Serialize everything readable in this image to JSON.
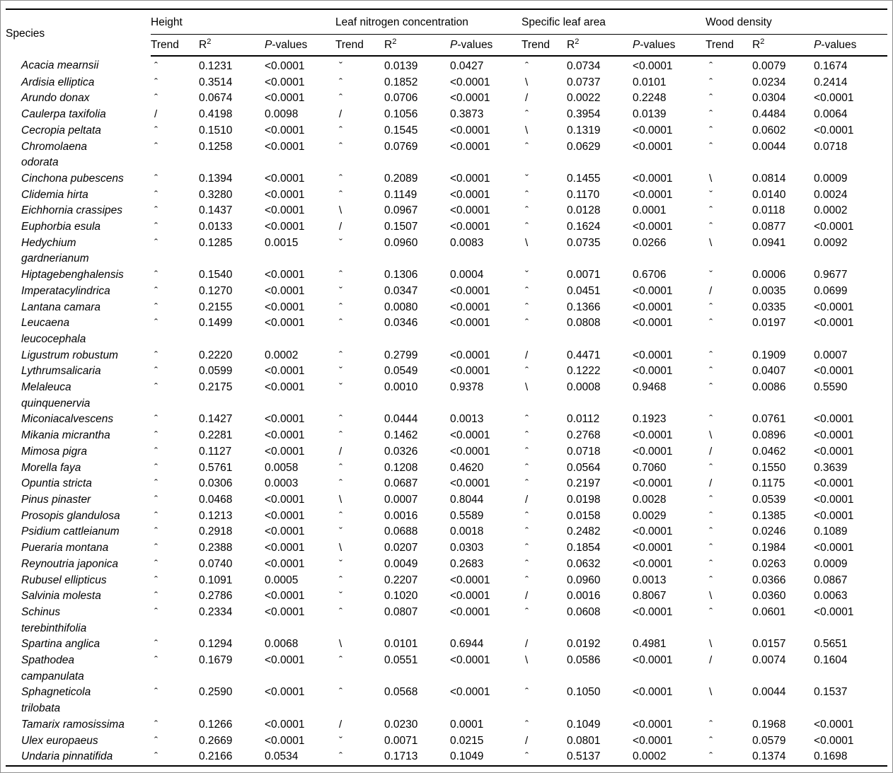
{
  "table": {
    "col_species": "Species",
    "groups": [
      "Height",
      "Leaf nitrogen concentration",
      "Specific leaf area",
      "Wood density"
    ],
    "subheaders": {
      "trend": "Trend",
      "r2_base": "R",
      "r2_sup": "2",
      "p_italic": "P",
      "p_rest": "-values"
    },
    "trend_glyphs": {
      "hump": "ˆ",
      "u_shape": "ˇ",
      "increase": "/",
      "decrease": "\\"
    },
    "rows": [
      {
        "species": "Acacia mearnsii",
        "cells": [
          [
            "ˆ",
            "0.1231",
            "<0.0001"
          ],
          [
            "ˇ",
            "0.0139",
            "0.0427"
          ],
          [
            "ˆ",
            "0.0734",
            "<0.0001"
          ],
          [
            "ˆ",
            "0.0079",
            "0.1674"
          ]
        ]
      },
      {
        "species": "Ardisia elliptica",
        "cells": [
          [
            "ˆ",
            "0.3514",
            "<0.0001"
          ],
          [
            "ˆ",
            "0.1852",
            "<0.0001"
          ],
          [
            "\\",
            "0.0737",
            "0.0101"
          ],
          [
            "ˆ",
            "0.0234",
            "0.2414"
          ]
        ]
      },
      {
        "species": "Arundo donax",
        "cells": [
          [
            "ˆ",
            "0.0674",
            "<0.0001"
          ],
          [
            "ˆ",
            "0.0706",
            "<0.0001"
          ],
          [
            "/",
            "0.0022",
            "0.2248"
          ],
          [
            "ˆ",
            "0.0304",
            "<0.0001"
          ]
        ]
      },
      {
        "species": "Caulerpa taxifolia",
        "cells": [
          [
            "/",
            "0.4198",
            "0.0098"
          ],
          [
            "/",
            "0.1056",
            "0.3873"
          ],
          [
            "ˆ",
            "0.3954",
            "0.0139"
          ],
          [
            "ˆ",
            "0.4484",
            "0.0064"
          ]
        ]
      },
      {
        "species": "Cecropia peltata",
        "cells": [
          [
            "ˆ",
            "0.1510",
            "<0.0001"
          ],
          [
            "ˆ",
            "0.1545",
            "<0.0001"
          ],
          [
            "\\",
            "0.1319",
            "<0.0001"
          ],
          [
            "ˆ",
            "0.0602",
            "<0.0001"
          ]
        ]
      },
      {
        "species": "Chromolaena\nodorata",
        "cells": [
          [
            "ˆ",
            "0.1258",
            "<0.0001"
          ],
          [
            "ˆ",
            "0.0769",
            "<0.0001"
          ],
          [
            "ˆ",
            "0.0629",
            "<0.0001"
          ],
          [
            "ˆ",
            "0.0044",
            "0.0718"
          ]
        ]
      },
      {
        "species": "Cinchona pubescens",
        "cells": [
          [
            "ˆ",
            "0.1394",
            "<0.0001"
          ],
          [
            "ˆ",
            "0.2089",
            "<0.0001"
          ],
          [
            "ˇ",
            "0.1455",
            "<0.0001"
          ],
          [
            "\\",
            "0.0814",
            "0.0009"
          ]
        ]
      },
      {
        "species": "Clidemia hirta",
        "cells": [
          [
            "ˆ",
            "0.3280",
            "<0.0001"
          ],
          [
            "ˆ",
            "0.1149",
            "<0.0001"
          ],
          [
            "ˆ",
            "0.1170",
            "<0.0001"
          ],
          [
            "ˇ",
            "0.0140",
            "0.0024"
          ]
        ]
      },
      {
        "species": "Eichhornia crassipes",
        "cells": [
          [
            "ˆ",
            "0.1437",
            "<0.0001"
          ],
          [
            "\\",
            "0.0967",
            "<0.0001"
          ],
          [
            "ˆ",
            "0.0128",
            "0.0001"
          ],
          [
            "ˆ",
            "0.0118",
            "0.0002"
          ]
        ]
      },
      {
        "species": "Euphorbia esula",
        "cells": [
          [
            "ˆ",
            "0.0133",
            "<0.0001"
          ],
          [
            "/",
            "0.1507",
            "<0.0001"
          ],
          [
            "ˆ",
            "0.1624",
            "<0.0001"
          ],
          [
            "ˆ",
            "0.0877",
            "<0.0001"
          ]
        ]
      },
      {
        "species": "Hedychium\ngardnerianum",
        "cells": [
          [
            "ˆ",
            "0.1285",
            "0.0015"
          ],
          [
            "ˇ",
            "0.0960",
            "0.0083"
          ],
          [
            "\\",
            "0.0735",
            "0.0266"
          ],
          [
            "\\",
            "0.0941",
            "0.0092"
          ]
        ]
      },
      {
        "species": "Hiptagebenghalensis",
        "cells": [
          [
            "ˆ",
            "0.1540",
            "<0.0001"
          ],
          [
            "ˆ",
            "0.1306",
            "0.0004"
          ],
          [
            "ˇ",
            "0.0071",
            "0.6706"
          ],
          [
            "ˇ",
            "0.0006",
            "0.9677"
          ]
        ]
      },
      {
        "species": "Imperatacylindrica",
        "cells": [
          [
            "ˆ",
            "0.1270",
            "<0.0001"
          ],
          [
            "ˇ",
            "0.0347",
            "<0.0001"
          ],
          [
            "ˆ",
            "0.0451",
            "<0.0001"
          ],
          [
            "/",
            "0.0035",
            "0.0699"
          ]
        ]
      },
      {
        "species": "Lantana camara",
        "cells": [
          [
            "ˆ",
            "0.2155",
            "<0.0001"
          ],
          [
            "ˆ",
            "0.0080",
            "<0.0001"
          ],
          [
            "ˆ",
            "0.1366",
            "<0.0001"
          ],
          [
            "ˆ",
            "0.0335",
            "<0.0001"
          ]
        ]
      },
      {
        "species": "Leucaena\nleucocephala",
        "cells": [
          [
            "ˆ",
            "0.1499",
            "<0.0001"
          ],
          [
            "ˆ",
            "0.0346",
            "<0.0001"
          ],
          [
            "ˆ",
            "0.0808",
            "<0.0001"
          ],
          [
            "ˆ",
            "0.0197",
            "<0.0001"
          ]
        ]
      },
      {
        "species": "Ligustrum robustum",
        "cells": [
          [
            "ˆ",
            "0.2220",
            "0.0002"
          ],
          [
            "ˆ",
            "0.2799",
            "<0.0001"
          ],
          [
            "/",
            "0.4471",
            "<0.0001"
          ],
          [
            "ˆ",
            "0.1909",
            "0.0007"
          ]
        ]
      },
      {
        "species": "Lythrumsalicaria",
        "cells": [
          [
            "ˆ",
            "0.0599",
            "<0.0001"
          ],
          [
            "ˇ",
            "0.0549",
            "<0.0001"
          ],
          [
            "ˆ",
            "0.1222",
            "<0.0001"
          ],
          [
            "ˆ",
            "0.0407",
            "<0.0001"
          ]
        ]
      },
      {
        "species": "Melaleuca\nquinquenervia",
        "cells": [
          [
            "ˆ",
            "0.2175",
            "<0.0001"
          ],
          [
            "ˇ",
            "0.0010",
            "0.9378"
          ],
          [
            "\\",
            "0.0008",
            "0.9468"
          ],
          [
            "ˆ",
            "0.0086",
            "0.5590"
          ]
        ]
      },
      {
        "species": "Miconiacalvescens",
        "cells": [
          [
            "ˆ",
            "0.1427",
            "<0.0001"
          ],
          [
            "ˆ",
            "0.0444",
            "0.0013"
          ],
          [
            "ˆ",
            "0.0112",
            "0.1923"
          ],
          [
            "ˆ",
            "0.0761",
            "<0.0001"
          ]
        ]
      },
      {
        "species": "Mikania micrantha",
        "cells": [
          [
            "ˆ",
            "0.2281",
            "<0.0001"
          ],
          [
            "ˆ",
            "0.1462",
            "<0.0001"
          ],
          [
            "ˆ",
            "0.2768",
            "<0.0001"
          ],
          [
            "\\",
            "0.0896",
            "<0.0001"
          ]
        ]
      },
      {
        "species": "Mimosa pigra",
        "cells": [
          [
            "ˆ",
            "0.1127",
            "<0.0001"
          ],
          [
            "/",
            "0.0326",
            "<0.0001"
          ],
          [
            "ˆ",
            "0.0718",
            "<0.0001"
          ],
          [
            "/",
            "0.0462",
            "<0.0001"
          ]
        ]
      },
      {
        "species": "Morella faya",
        "cells": [
          [
            "ˆ",
            "0.5761",
            "0.0058"
          ],
          [
            "ˆ",
            "0.1208",
            "0.4620"
          ],
          [
            "ˆ",
            "0.0564",
            "0.7060"
          ],
          [
            "ˆ",
            "0.1550",
            "0.3639"
          ]
        ]
      },
      {
        "species": "Opuntia stricta",
        "cells": [
          [
            "ˆ",
            "0.0306",
            "0.0003"
          ],
          [
            "ˆ",
            "0.0687",
            "<0.0001"
          ],
          [
            "ˆ",
            "0.2197",
            "<0.0001"
          ],
          [
            "/",
            "0.1175",
            "<0.0001"
          ]
        ]
      },
      {
        "species": "Pinus pinaster",
        "cells": [
          [
            "ˆ",
            "0.0468",
            "<0.0001"
          ],
          [
            "\\",
            "0.0007",
            "0.8044"
          ],
          [
            "/",
            "0.0198",
            "0.0028"
          ],
          [
            "ˆ",
            "0.0539",
            "<0.0001"
          ]
        ]
      },
      {
        "species": "Prosopis glandulosa",
        "cells": [
          [
            "ˆ",
            "0.1213",
            "<0.0001"
          ],
          [
            "ˆ",
            "0.0016",
            "0.5589"
          ],
          [
            "ˆ",
            "0.0158",
            "0.0029"
          ],
          [
            "ˆ",
            "0.1385",
            "<0.0001"
          ]
        ]
      },
      {
        "species": "Psidium cattleianum",
        "cells": [
          [
            "ˆ",
            "0.2918",
            "<0.0001"
          ],
          [
            "ˇ",
            "0.0688",
            "0.0018"
          ],
          [
            "ˆ",
            "0.2482",
            "<0.0001"
          ],
          [
            "ˆ",
            "0.0246",
            "0.1089"
          ]
        ]
      },
      {
        "species": "Pueraria montana",
        "cells": [
          [
            "ˆ",
            "0.2388",
            "<0.0001"
          ],
          [
            "\\",
            "0.0207",
            "0.0303"
          ],
          [
            "ˆ",
            "0.1854",
            "<0.0001"
          ],
          [
            "ˆ",
            "0.1984",
            "<0.0001"
          ]
        ]
      },
      {
        "species": "Reynoutria japonica",
        "cells": [
          [
            "ˆ",
            "0.0740",
            "<0.0001"
          ],
          [
            "ˇ",
            "0.0049",
            "0.2683"
          ],
          [
            "ˆ",
            "0.0632",
            "<0.0001"
          ],
          [
            "ˆ",
            "0.0263",
            "0.0009"
          ]
        ]
      },
      {
        "species": "Rubusel ellipticus",
        "cells": [
          [
            "ˆ",
            "0.1091",
            "0.0005"
          ],
          [
            "ˆ",
            "0.2207",
            "<0.0001"
          ],
          [
            "ˆ",
            "0.0960",
            "0.0013"
          ],
          [
            "ˆ",
            "0.0366",
            "0.0867"
          ]
        ]
      },
      {
        "species": "Salvinia molesta",
        "cells": [
          [
            "ˆ",
            "0.2786",
            "<0.0001"
          ],
          [
            "ˇ",
            "0.1020",
            "<0.0001"
          ],
          [
            "/",
            "0.0016",
            "0.8067"
          ],
          [
            "\\",
            "0.0360",
            "0.0063"
          ]
        ]
      },
      {
        "species": "Schinus\nterebinthifolia",
        "cells": [
          [
            "ˆ",
            "0.2334",
            "<0.0001"
          ],
          [
            "ˆ",
            "0.0807",
            "<0.0001"
          ],
          [
            "ˆ",
            "0.0608",
            "<0.0001"
          ],
          [
            "ˆ",
            "0.0601",
            "<0.0001"
          ]
        ]
      },
      {
        "species": "Spartina anglica",
        "cells": [
          [
            "ˆ",
            "0.1294",
            "0.0068"
          ],
          [
            "\\",
            "0.0101",
            "0.6944"
          ],
          [
            "/",
            "0.0192",
            "0.4981"
          ],
          [
            "\\",
            "0.0157",
            "0.5651"
          ]
        ]
      },
      {
        "species": "Spathodea\ncampanulata",
        "cells": [
          [
            "ˆ",
            "0.1679",
            "<0.0001"
          ],
          [
            "ˆ",
            "0.0551",
            "<0.0001"
          ],
          [
            "\\",
            "0.0586",
            "<0.0001"
          ],
          [
            "/",
            "0.0074",
            "0.1604"
          ]
        ]
      },
      {
        "species": "Sphagneticola\ntrilobata",
        "cells": [
          [
            "ˆ",
            "0.2590",
            "<0.0001"
          ],
          [
            "ˆ",
            "0.0568",
            "<0.0001"
          ],
          [
            "ˆ",
            "0.1050",
            "<0.0001"
          ],
          [
            "\\",
            "0.0044",
            "0.1537"
          ]
        ]
      },
      {
        "species": "Tamarix ramosissima",
        "cells": [
          [
            "ˆ",
            "0.1266",
            "<0.0001"
          ],
          [
            "/",
            "0.0230",
            "0.0001"
          ],
          [
            "ˆ",
            "0.1049",
            "<0.0001"
          ],
          [
            "ˆ",
            "0.1968",
            "<0.0001"
          ]
        ]
      },
      {
        "species": "Ulex europaeus",
        "cells": [
          [
            "ˆ",
            "0.2669",
            "<0.0001"
          ],
          [
            "ˇ",
            "0.0071",
            "0.0215"
          ],
          [
            "/",
            "0.0801",
            "<0.0001"
          ],
          [
            "ˆ",
            "0.0579",
            "<0.0001"
          ]
        ]
      },
      {
        "species": "Undaria pinnatifida",
        "cells": [
          [
            "ˆ",
            "0.2166",
            "0.0534"
          ],
          [
            "ˆ",
            "0.1713",
            "0.1049"
          ],
          [
            "ˆ",
            "0.5137",
            "0.0002"
          ],
          [
            "ˆ",
            "0.1374",
            "0.1698"
          ]
        ]
      }
    ]
  },
  "colors": {
    "text": "#000000",
    "rule": "#000000",
    "figure_border": "#8f8f8f",
    "background": "#ffffff"
  }
}
